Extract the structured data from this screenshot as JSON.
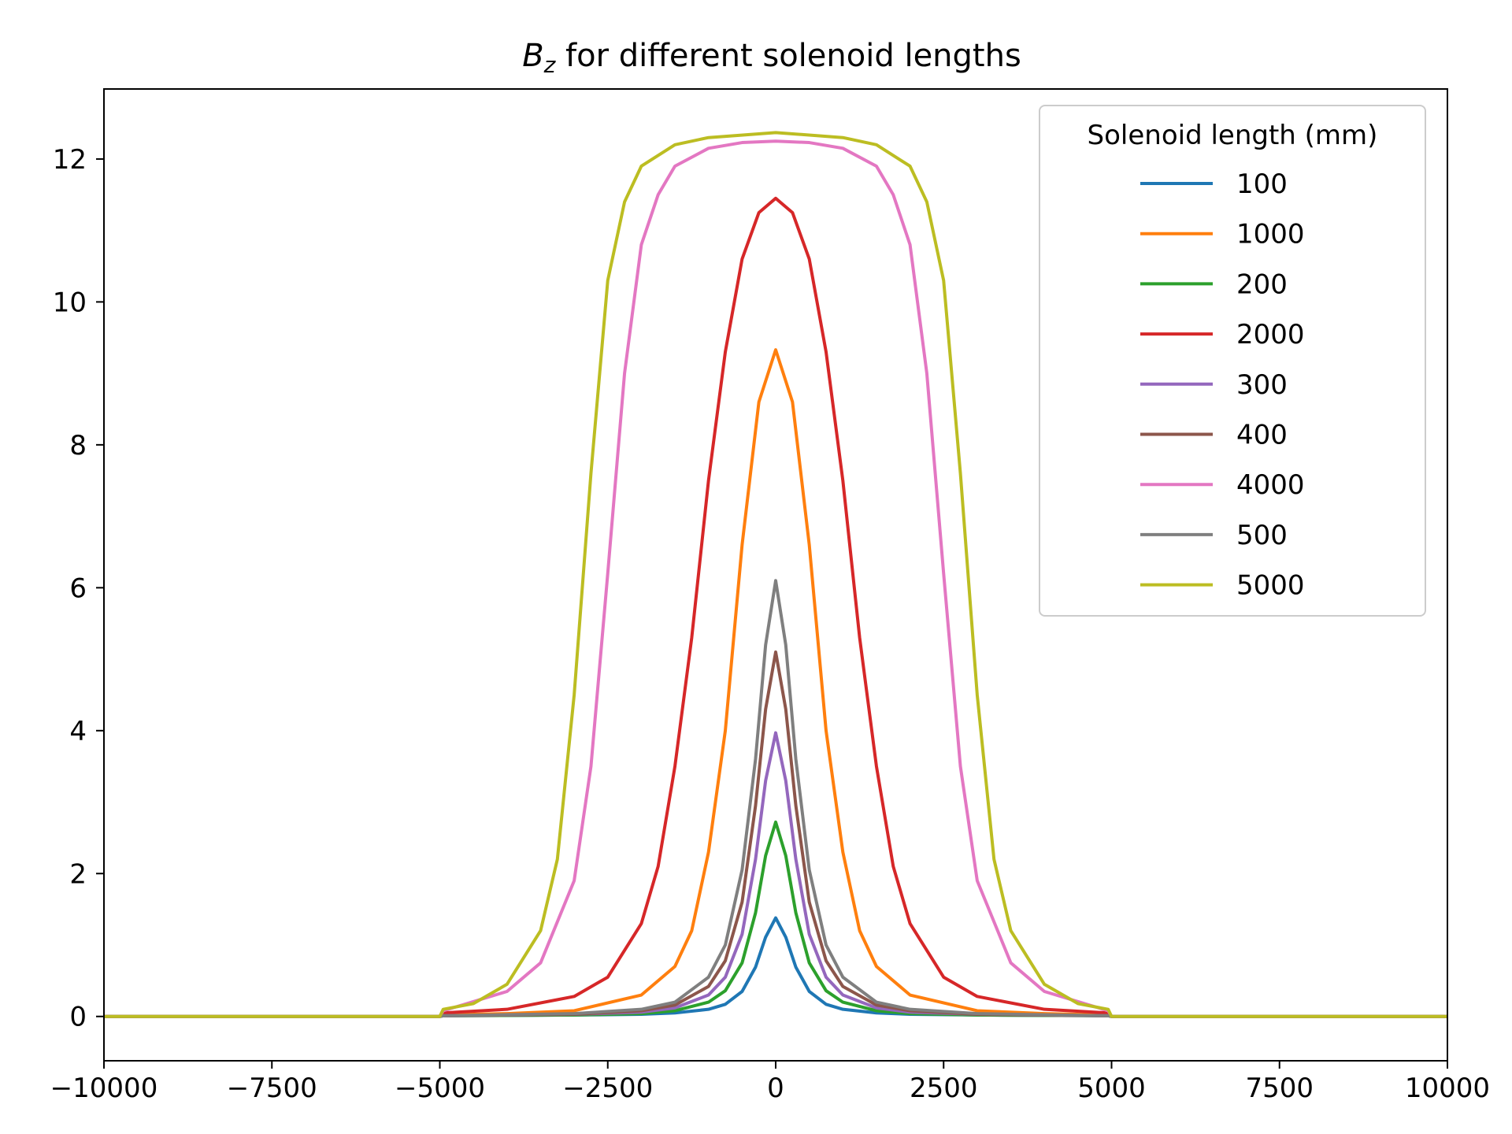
{
  "chart_data": {
    "type": "line",
    "title_main": "B",
    "title_sub": "z",
    "title_rest": " for different solenoid lengths",
    "xlabel": "",
    "ylabel": "",
    "xlim": [
      -10000,
      10000
    ],
    "ylim": [
      -0.62,
      12.98
    ],
    "xticks": [
      -10000,
      -7500,
      -5000,
      -2500,
      0,
      2500,
      5000,
      7500,
      10000
    ],
    "xtick_labels": [
      "−10000",
      "−7500",
      "−5000",
      "−2500",
      "0",
      "2500",
      "5000",
      "7500",
      "10000"
    ],
    "yticks": [
      0,
      2,
      4,
      6,
      8,
      10,
      12
    ],
    "ytick_labels": [
      "0",
      "2",
      "4",
      "6",
      "8",
      "10",
      "12"
    ],
    "grid": false,
    "legend_placement": "top-right",
    "legend_title": "Solenoid length (mm)",
    "series": [
      {
        "name": "100",
        "color": "#1f77b4",
        "peak": 1.38,
        "length_mm": 100,
        "x": [
          -10000,
          -5000,
          -4950,
          -3000,
          -2000,
          -1500,
          -1000,
          -750,
          -500,
          -300,
          -150,
          0,
          150,
          300,
          500,
          750,
          1000,
          1500,
          2000,
          3000,
          4950,
          5000,
          10000
        ],
        "y": [
          0,
          0,
          0.01,
          0.02,
          0.03,
          0.05,
          0.1,
          0.17,
          0.35,
          0.69,
          1.11,
          1.38,
          1.11,
          0.69,
          0.35,
          0.17,
          0.1,
          0.05,
          0.03,
          0.02,
          0.01,
          0,
          0
        ]
      },
      {
        "name": "1000",
        "color": "#ff7f0e",
        "peak": 9.33,
        "length_mm": 1000,
        "x": [
          -10000,
          -5000,
          -4950,
          -4000,
          -3000,
          -2000,
          -1500,
          -1250,
          -1000,
          -750,
          -500,
          -250,
          0,
          250,
          500,
          750,
          1000,
          1250,
          1500,
          2000,
          3000,
          4000,
          4950,
          5000,
          10000
        ],
        "y": [
          0,
          0,
          0.02,
          0.04,
          0.08,
          0.3,
          0.7,
          1.2,
          2.3,
          4.0,
          6.6,
          8.6,
          9.33,
          8.6,
          6.6,
          4.0,
          2.3,
          1.2,
          0.7,
          0.3,
          0.08,
          0.04,
          0.02,
          0,
          0
        ]
      },
      {
        "name": "200",
        "color": "#2ca02c",
        "peak": 2.72,
        "length_mm": 200,
        "x": [
          -10000,
          -5000,
          -4950,
          -3000,
          -2000,
          -1500,
          -1000,
          -750,
          -500,
          -300,
          -150,
          0,
          150,
          300,
          500,
          750,
          1000,
          1500,
          2000,
          3000,
          4950,
          5000,
          10000
        ],
        "y": [
          0,
          0,
          0.01,
          0.02,
          0.04,
          0.08,
          0.2,
          0.36,
          0.75,
          1.45,
          2.25,
          2.72,
          2.25,
          1.45,
          0.75,
          0.36,
          0.2,
          0.08,
          0.04,
          0.02,
          0.01,
          0,
          0
        ]
      },
      {
        "name": "2000",
        "color": "#d62728",
        "peak": 11.45,
        "length_mm": 2000,
        "x": [
          -10000,
          -5000,
          -4950,
          -4000,
          -3000,
          -2500,
          -2000,
          -1750,
          -1500,
          -1250,
          -1000,
          -750,
          -500,
          -250,
          0,
          250,
          500,
          750,
          1000,
          1250,
          1500,
          1750,
          2000,
          2500,
          3000,
          4000,
          4950,
          5000,
          10000
        ],
        "y": [
          0,
          0,
          0.05,
          0.1,
          0.28,
          0.55,
          1.3,
          2.1,
          3.5,
          5.3,
          7.5,
          9.3,
          10.6,
          11.25,
          11.45,
          11.25,
          10.6,
          9.3,
          7.5,
          5.3,
          3.5,
          2.1,
          1.3,
          0.55,
          0.28,
          0.1,
          0.05,
          0,
          0
        ]
      },
      {
        "name": "300",
        "color": "#9467bd",
        "peak": 3.97,
        "length_mm": 300,
        "x": [
          -10000,
          -5000,
          -4950,
          -3000,
          -2000,
          -1500,
          -1000,
          -750,
          -500,
          -300,
          -150,
          0,
          150,
          300,
          500,
          750,
          1000,
          1500,
          2000,
          3000,
          4950,
          5000,
          10000
        ],
        "y": [
          0,
          0,
          0.01,
          0.03,
          0.06,
          0.12,
          0.3,
          0.55,
          1.15,
          2.2,
          3.3,
          3.97,
          3.3,
          2.2,
          1.15,
          0.55,
          0.3,
          0.12,
          0.06,
          0.03,
          0.01,
          0,
          0
        ]
      },
      {
        "name": "400",
        "color": "#8c564b",
        "peak": 5.1,
        "length_mm": 400,
        "x": [
          -10000,
          -5000,
          -4950,
          -3000,
          -2000,
          -1500,
          -1000,
          -750,
          -500,
          -300,
          -150,
          0,
          150,
          300,
          500,
          750,
          1000,
          1500,
          2000,
          3000,
          4950,
          5000,
          10000
        ],
        "y": [
          0,
          0,
          0.01,
          0.03,
          0.08,
          0.16,
          0.42,
          0.78,
          1.6,
          2.95,
          4.3,
          5.1,
          4.3,
          2.95,
          1.6,
          0.78,
          0.42,
          0.16,
          0.08,
          0.03,
          0.01,
          0,
          0
        ]
      },
      {
        "name": "4000",
        "color": "#e377c2",
        "peak": 12.25,
        "length_mm": 4000,
        "x": [
          -10000,
          -5000,
          -4950,
          -4000,
          -3500,
          -3000,
          -2750,
          -2500,
          -2250,
          -2000,
          -1750,
          -1500,
          -1000,
          -500,
          0,
          500,
          1000,
          1500,
          1750,
          2000,
          2250,
          2500,
          2750,
          3000,
          3500,
          4000,
          4950,
          5000,
          10000
        ],
        "y": [
          0,
          0,
          0.08,
          0.35,
          0.75,
          1.9,
          3.5,
          6.2,
          9.0,
          10.8,
          11.5,
          11.9,
          12.15,
          12.23,
          12.25,
          12.23,
          12.15,
          11.9,
          11.5,
          10.8,
          9.0,
          6.2,
          3.5,
          1.9,
          0.75,
          0.35,
          0.08,
          0,
          0
        ]
      },
      {
        "name": "500",
        "color": "#7f7f7f",
        "peak": 6.1,
        "length_mm": 500,
        "x": [
          -10000,
          -5000,
          -4950,
          -3000,
          -2000,
          -1500,
          -1000,
          -750,
          -500,
          -300,
          -150,
          0,
          150,
          300,
          500,
          750,
          1000,
          1500,
          2000,
          3000,
          4950,
          5000,
          10000
        ],
        "y": [
          0,
          0,
          0.01,
          0.04,
          0.1,
          0.2,
          0.55,
          1.0,
          2.05,
          3.6,
          5.2,
          6.1,
          5.2,
          3.6,
          2.05,
          1.0,
          0.55,
          0.2,
          0.1,
          0.04,
          0.01,
          0,
          0
        ]
      },
      {
        "name": "5000",
        "color": "#bcbd22",
        "peak": 12.37,
        "length_mm": 5000,
        "x": [
          -10000,
          -5000,
          -4950,
          -4500,
          -4000,
          -3500,
          -3250,
          -3000,
          -2750,
          -2500,
          -2250,
          -2000,
          -1500,
          -1000,
          0,
          1000,
          1500,
          2000,
          2250,
          2500,
          2750,
          3000,
          3250,
          3500,
          4000,
          4500,
          4950,
          5000,
          10000
        ],
        "y": [
          0,
          0,
          0.1,
          0.18,
          0.45,
          1.2,
          2.2,
          4.5,
          7.6,
          10.3,
          11.4,
          11.9,
          12.2,
          12.3,
          12.37,
          12.3,
          12.2,
          11.9,
          11.4,
          10.3,
          7.6,
          4.5,
          2.2,
          1.2,
          0.45,
          0.18,
          0.1,
          0,
          0
        ]
      }
    ]
  }
}
